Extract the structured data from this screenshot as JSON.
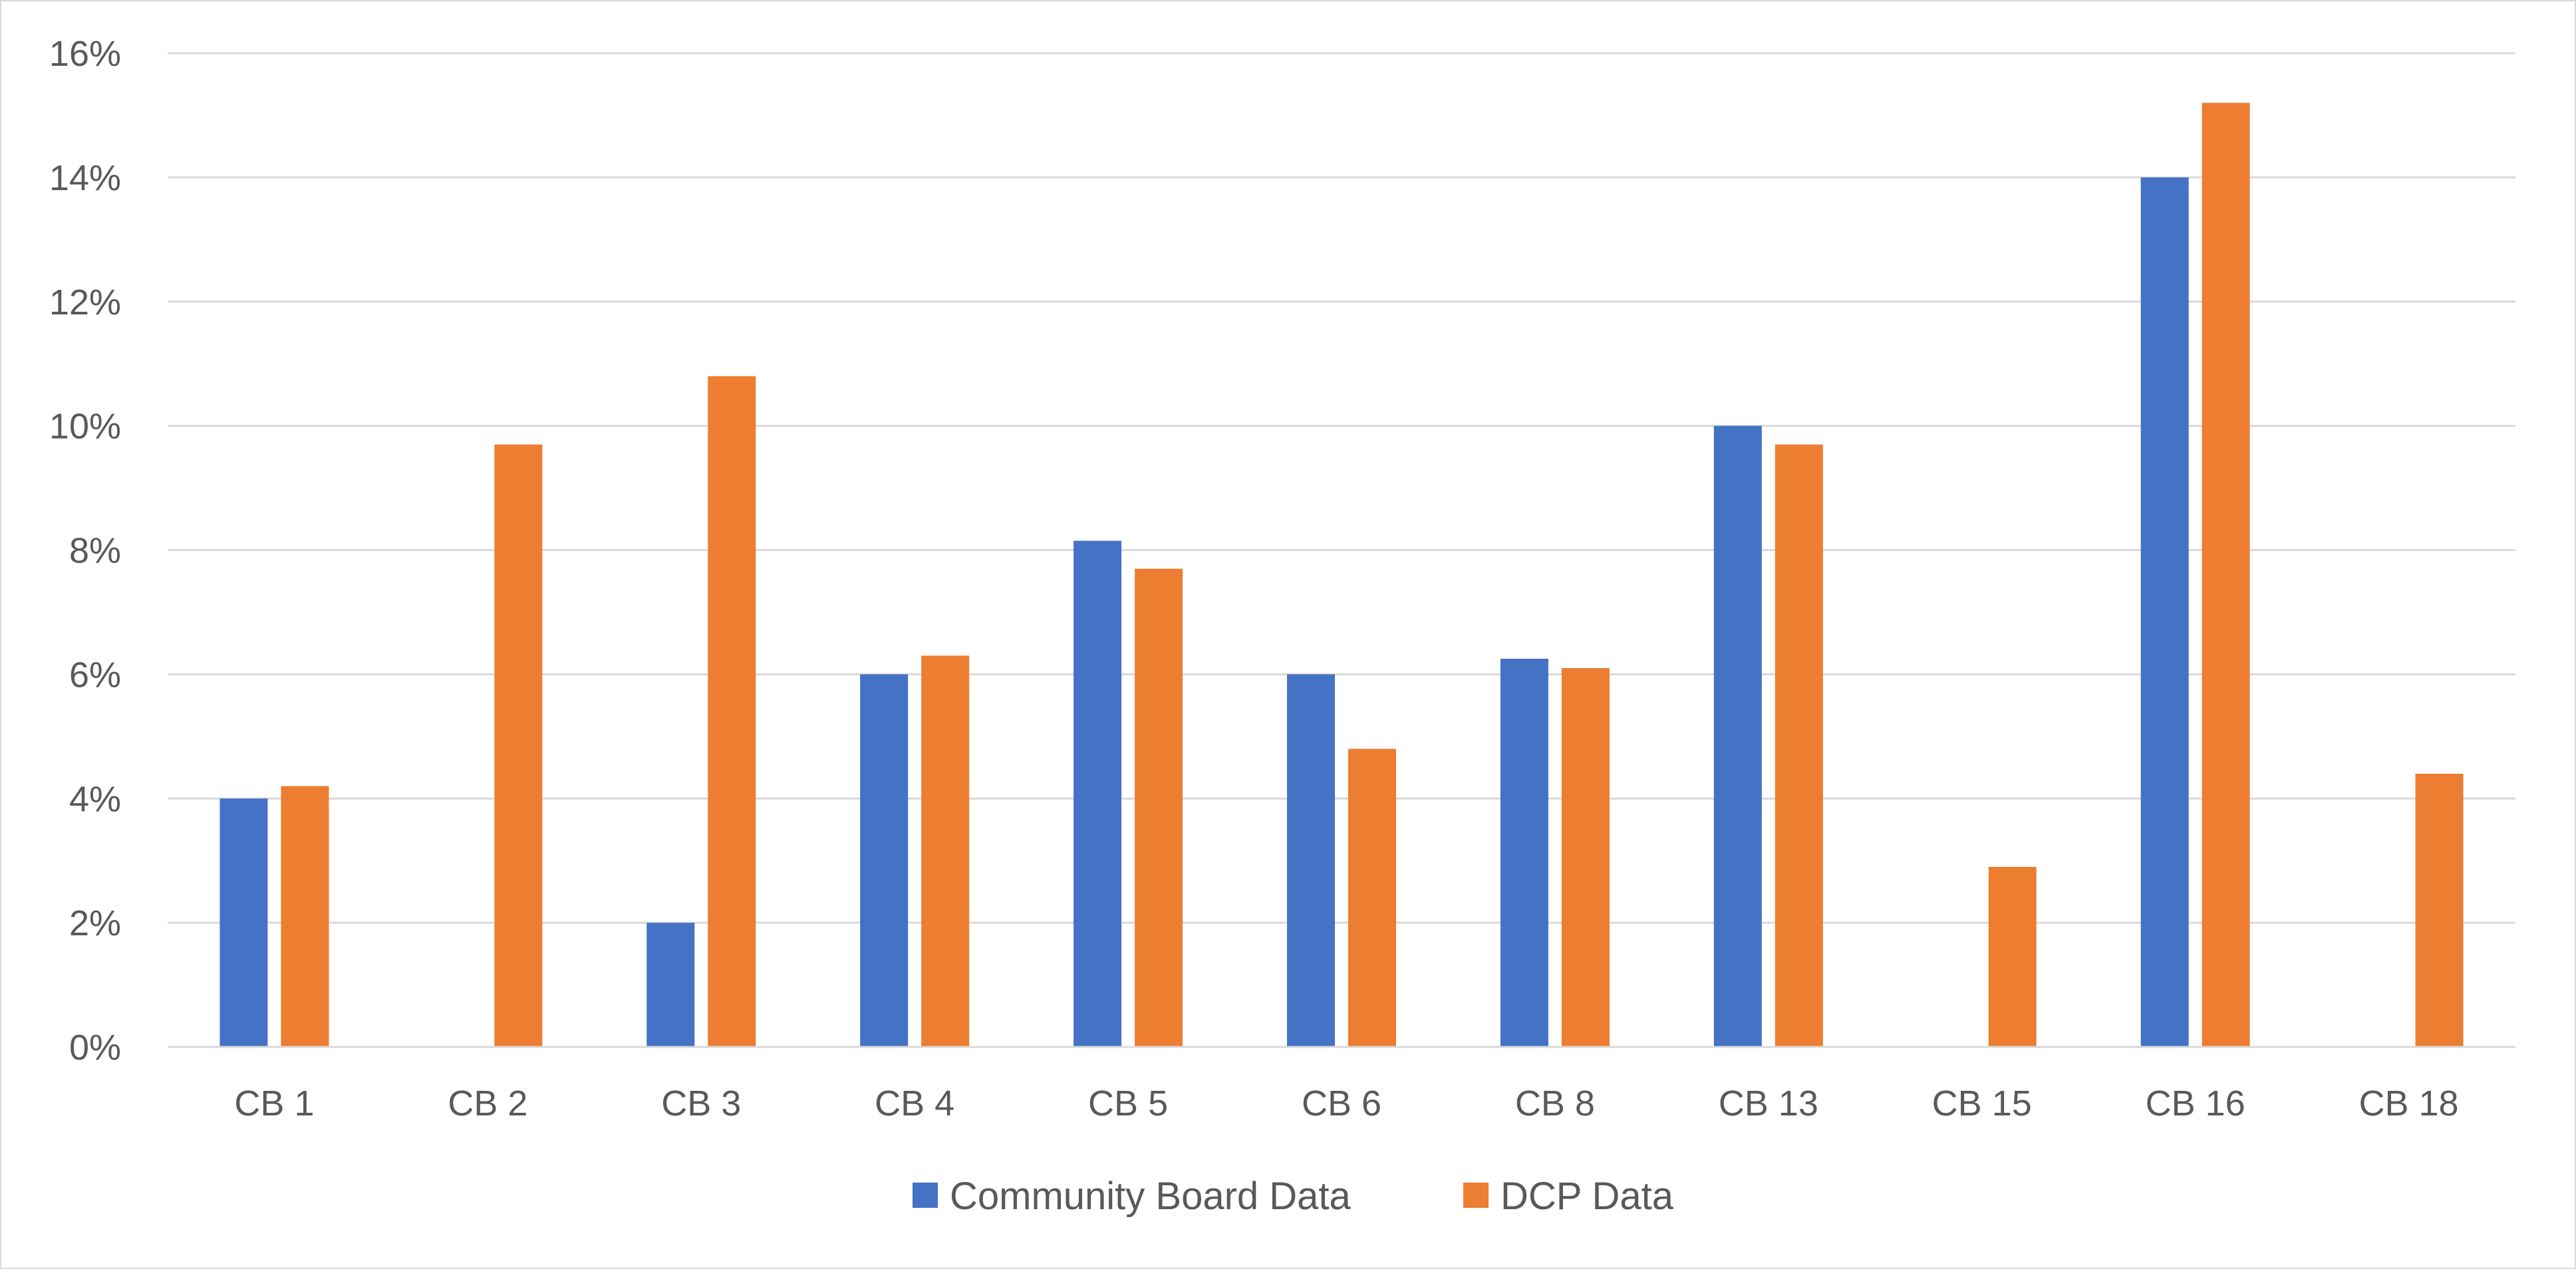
{
  "chart_data": {
    "type": "bar",
    "categories": [
      "CB 1",
      "CB 2",
      "CB 3",
      "CB 4",
      "CB 5",
      "CB 6",
      "CB 8",
      "CB 13",
      "CB 15",
      "CB 16",
      "CB 18"
    ],
    "series": [
      {
        "name": "Community Board Data",
        "color": "#4472c4",
        "values": [
          4.0,
          null,
          2.0,
          6.0,
          8.15,
          6.0,
          6.25,
          10.0,
          null,
          14.0,
          null
        ]
      },
      {
        "name": "DCP Data",
        "color": "#ed7d31",
        "values": [
          4.2,
          9.7,
          10.8,
          6.3,
          7.7,
          4.8,
          6.1,
          9.7,
          2.9,
          15.2,
          4.4
        ]
      }
    ],
    "y_ticks": [
      "0%",
      "2%",
      "4%",
      "6%",
      "8%",
      "10%",
      "12%",
      "14%",
      "16%"
    ],
    "ylim": [
      0,
      16
    ],
    "y_unit": "%",
    "grid": true,
    "legend_position": "bottom",
    "title": "",
    "xlabel": "",
    "ylabel": ""
  }
}
